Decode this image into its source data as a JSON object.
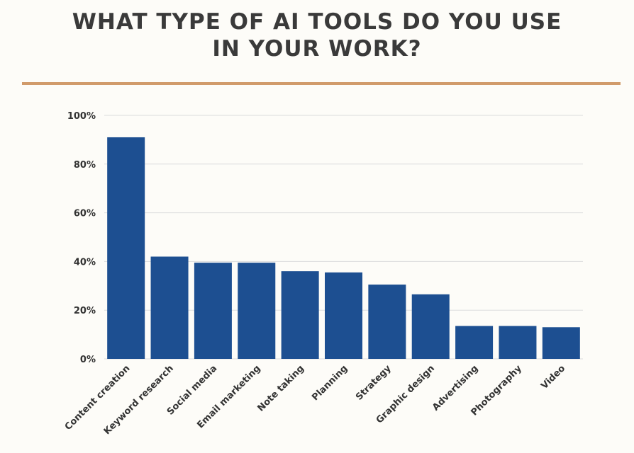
{
  "chart_data": {
    "type": "bar",
    "title_lines": [
      "WHAT TYPE OF AI TOOLS DO YOU USE",
      "IN YOUR WORK?"
    ],
    "categories": [
      "Content creation",
      "Keyword research",
      "Social media",
      "Email marketing",
      "Note taking",
      "Planning",
      "Strategy",
      "Graphic design",
      "Advertising",
      "Photography",
      "Video"
    ],
    "values": [
      91,
      42,
      39.5,
      39.5,
      36,
      35.5,
      30.5,
      26.5,
      13.5,
      13.5,
      13
    ],
    "yticks": [
      "0%",
      "20%",
      "40%",
      "60%",
      "80%",
      "100%"
    ],
    "ylim": [
      0,
      100
    ],
    "grid": true,
    "bar_color": "#1d4f91",
    "accent_color": "#d19b6b",
    "title_color": "#3a3a3a"
  }
}
